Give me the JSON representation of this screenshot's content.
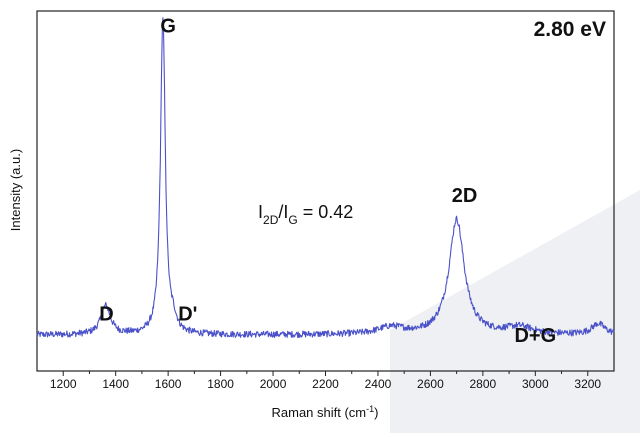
{
  "chart_data": {
    "type": "line",
    "title": "",
    "xlabel": "Raman shift (cm",
    "xlabel_superscript": "-1",
    "xlabel_suffix": ")",
    "ylabel": "Intensity (a.u.)",
    "xlim": [
      1100,
      3300
    ],
    "ylim": [
      0,
      1
    ],
    "y_ticks_shown": false,
    "grid": false,
    "x_ticks": [
      1200,
      1400,
      1600,
      1800,
      2000,
      2200,
      2400,
      2600,
      2800,
      3000,
      3200
    ],
    "x_tick_labels": [
      "1200",
      "1400",
      "1600",
      "1800",
      "2000",
      "2200",
      "2400",
      "2600",
      "2800",
      "3000",
      "3200"
    ],
    "series": [
      {
        "color": "#4b52c9",
        "baseline": 0.1,
        "peaks": [
          {
            "position": 1362,
            "height": 0.08,
            "width": 22
          },
          {
            "position": 1580,
            "height": 0.88,
            "width": 11
          },
          {
            "position": 1620,
            "height": 0.03,
            "width": 15
          },
          {
            "position": 2450,
            "height": 0.02,
            "width": 60
          },
          {
            "position": 2700,
            "height": 0.32,
            "width": 35
          },
          {
            "position": 2940,
            "height": 0.02,
            "width": 60
          },
          {
            "position": 3240,
            "height": 0.03,
            "width": 30
          }
        ]
      }
    ],
    "annotations": [
      {
        "text": "G",
        "x": 1600,
        "y": 0.94
      },
      {
        "text": "D",
        "x": 1365,
        "y": 0.14
      },
      {
        "text": "D'",
        "x": 1675,
        "y": 0.14
      },
      {
        "text": "2D",
        "x": 2730,
        "y": 0.47
      },
      {
        "text": "D+G",
        "x": 3000,
        "y": 0.08
      }
    ],
    "ratio_annotation": {
      "text_prefix": "I",
      "sub1": "2D",
      "slash": "/I",
      "sub2": "G",
      "value": " = 0.42"
    },
    "corner_label": "2.80 eV",
    "background_shape_color": "#eef0f3"
  }
}
